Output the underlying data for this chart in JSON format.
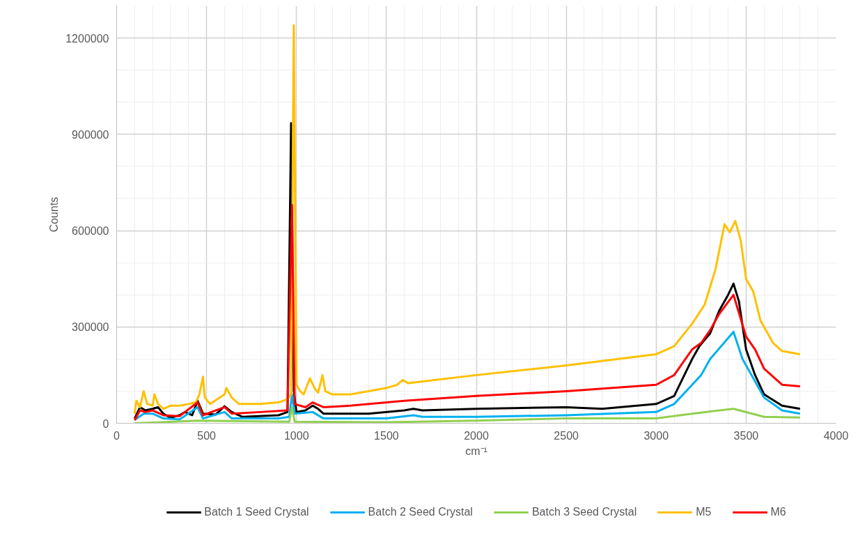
{
  "chart_data": {
    "type": "line",
    "xlabel": "cm⁻¹",
    "ylabel": "Counts",
    "xlim": [
      0,
      4000
    ],
    "xticks": [
      0,
      500,
      1000,
      1500,
      2000,
      2500,
      3000,
      3500,
      4000
    ],
    "ylim": [
      0,
      1300000
    ],
    "yticks": [
      0,
      300000,
      600000,
      900000,
      1200000
    ],
    "grid": true,
    "legend": "bottom",
    "marker": "none",
    "line_style": "solid",
    "series": [
      {
        "name": "Batch 1 Seed Crystal",
        "color": "#000000",
        "x": [
          100,
          130,
          160,
          200,
          230,
          260,
          300,
          350,
          380,
          420,
          450,
          480,
          550,
          600,
          640,
          700,
          900,
          950,
          970,
          985,
          1000,
          1050,
          1090,
          1120,
          1150,
          1400,
          1600,
          1650,
          1700,
          2000,
          2500,
          2700,
          3000,
          3100,
          3200,
          3240,
          3300,
          3350,
          3400,
          3430,
          3460,
          3500,
          3550,
          3600,
          3700,
          3800
        ],
        "values": [
          15000,
          50000,
          40000,
          45000,
          50000,
          30000,
          17000,
          25000,
          35000,
          25000,
          70000,
          30000,
          27000,
          53000,
          35000,
          20000,
          25000,
          35000,
          935000,
          100000,
          35000,
          40000,
          55000,
          45000,
          30000,
          30000,
          40000,
          45000,
          40000,
          45000,
          50000,
          45000,
          60000,
          85000,
          200000,
          240000,
          280000,
          350000,
          400000,
          435000,
          380000,
          230000,
          150000,
          90000,
          55000,
          45000
        ]
      },
      {
        "name": "Batch 2 Seed Crystal",
        "color": "#00b0f0",
        "x": [
          100,
          150,
          200,
          260,
          350,
          450,
          480,
          600,
          640,
          900,
          960,
          975,
          990,
          1090,
          1150,
          1500,
          1650,
          1700,
          2000,
          2500,
          3000,
          3100,
          3200,
          3250,
          3300,
          3430,
          3480,
          3550,
          3600,
          3700,
          3800
        ],
        "values": [
          10000,
          30000,
          30000,
          15000,
          12000,
          50000,
          15000,
          35000,
          15000,
          15000,
          20000,
          90000,
          30000,
          35000,
          15000,
          15000,
          25000,
          20000,
          20000,
          25000,
          35000,
          60000,
          120000,
          150000,
          200000,
          285000,
          200000,
          130000,
          80000,
          40000,
          30000
        ]
      },
      {
        "name": "Batch 3 Seed Crystal",
        "color": "#92d050",
        "x": [
          100,
          450,
          960,
          975,
          990,
          1500,
          2000,
          2500,
          3000,
          3200,
          3430,
          3600,
          3800
        ],
        "values": [
          0,
          8000,
          5000,
          50000,
          5000,
          3000,
          8000,
          15000,
          15000,
          30000,
          45000,
          20000,
          18000
        ]
      },
      {
        "name": "M5",
        "color": "#ffc000",
        "x": [
          100,
          110,
          130,
          150,
          170,
          200,
          210,
          230,
          260,
          300,
          350,
          400,
          440,
          460,
          480,
          490,
          520,
          600,
          610,
          640,
          680,
          800,
          900,
          950,
          970,
          985,
          1000,
          1020,
          1040,
          1075,
          1100,
          1120,
          1145,
          1160,
          1200,
          1300,
          1400,
          1500,
          1560,
          1590,
          1620,
          1700,
          2000,
          2500,
          3000,
          3100,
          3200,
          3270,
          3330,
          3380,
          3410,
          3440,
          3470,
          3500,
          3540,
          3580,
          3650,
          3700,
          3800
        ],
        "values": [
          30000,
          70000,
          50000,
          100000,
          60000,
          55000,
          90000,
          60000,
          45000,
          55000,
          55000,
          60000,
          65000,
          90000,
          145000,
          80000,
          60000,
          90000,
          110000,
          80000,
          60000,
          60000,
          65000,
          75000,
          90000,
          1240000,
          120000,
          100000,
          90000,
          140000,
          110000,
          95000,
          150000,
          100000,
          90000,
          90000,
          100000,
          110000,
          120000,
          135000,
          125000,
          130000,
          150000,
          180000,
          215000,
          240000,
          310000,
          370000,
          480000,
          620000,
          595000,
          630000,
          570000,
          450000,
          410000,
          320000,
          250000,
          225000,
          215000
        ]
      },
      {
        "name": "M6",
        "color": "#ff0000",
        "x": [
          100,
          130,
          160,
          200,
          260,
          350,
          450,
          480,
          600,
          640,
          800,
          950,
          975,
          990,
          1050,
          1090,
          1150,
          1300,
          1600,
          2000,
          2500,
          3000,
          3100,
          3200,
          3250,
          3300,
          3350,
          3430,
          3500,
          3550,
          3600,
          3700,
          3800
        ],
        "values": [
          10000,
          40000,
          35000,
          40000,
          25000,
          22000,
          65000,
          25000,
          50000,
          30000,
          35000,
          40000,
          680000,
          60000,
          50000,
          65000,
          50000,
          55000,
          70000,
          85000,
          100000,
          120000,
          150000,
          230000,
          250000,
          290000,
          340000,
          400000,
          270000,
          230000,
          170000,
          120000,
          115000
        ]
      }
    ]
  }
}
